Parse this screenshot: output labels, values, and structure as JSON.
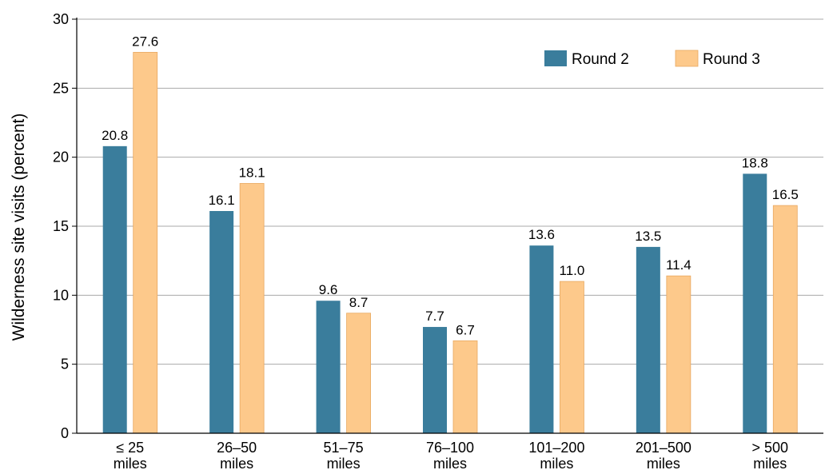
{
  "chart_data": {
    "type": "bar",
    "title": "",
    "xlabel": "",
    "ylabel": "Wilderness site visits (percent)",
    "ylim": [
      0,
      30
    ],
    "yticks": [
      0,
      5,
      10,
      15,
      20,
      25,
      30
    ],
    "grid": true,
    "legend_position": "top-right",
    "categories": [
      [
        "≤ 25",
        "miles"
      ],
      [
        "26–50",
        "miles"
      ],
      [
        "51–75",
        "miles"
      ],
      [
        "76–100",
        "miles"
      ],
      [
        "101–200",
        "miles"
      ],
      [
        "201–500",
        "miles"
      ],
      [
        "> 500",
        "miles"
      ]
    ],
    "series": [
      {
        "name": "Round 2",
        "color": "#3a7d9c",
        "values": [
          20.8,
          16.1,
          9.6,
          7.7,
          13.6,
          13.5,
          18.8
        ],
        "labels": [
          "20.8",
          "16.1",
          "9.6",
          "7.7",
          "13.6",
          "13.5",
          "18.8"
        ]
      },
      {
        "name": "Round 3",
        "color": "#fdc98b",
        "values": [
          27.6,
          18.1,
          8.7,
          6.7,
          11.0,
          11.4,
          16.5
        ],
        "labels": [
          "27.6",
          "18.1",
          "8.7",
          "6.7",
          "11.0",
          "11.4",
          "16.5"
        ]
      }
    ]
  },
  "colors": {
    "grid": "#aaaaaa",
    "axis": "#000000",
    "round3_edge": "#e8a860"
  }
}
